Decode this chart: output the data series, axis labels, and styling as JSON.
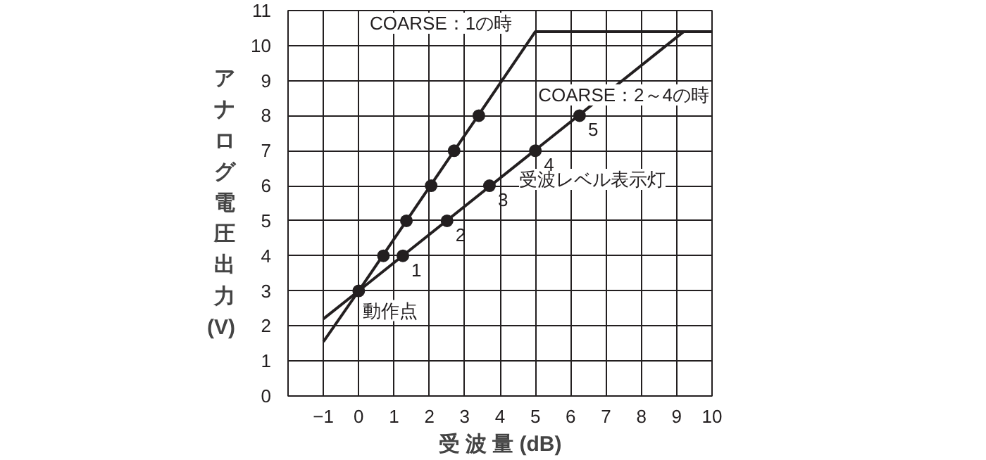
{
  "chart_data": {
    "type": "line",
    "xlabel": "受 波 量 (dB)",
    "ylabel": "アナログ電圧出力 (V)",
    "xlim": [
      -2,
      10
    ],
    "ylim": [
      0,
      11
    ],
    "xticks": [
      -1,
      0,
      1,
      2,
      3,
      4,
      5,
      6,
      7,
      8,
      9,
      10
    ],
    "yticks": [
      0,
      1,
      2,
      3,
      4,
      5,
      6,
      7,
      8,
      9,
      10,
      11
    ],
    "grid": true,
    "series": [
      {
        "color": "#231f20",
        "x": [
          -1,
          0,
          5,
          10
        ],
        "values": [
          1.55,
          3,
          10.4,
          10.4
        ]
      },
      {
        "color": "#231f20",
        "x": [
          -1,
          0,
          9.2,
          10
        ],
        "values": [
          2.2,
          3,
          10.4,
          10.4
        ]
      },
      {
        "type": "scatter",
        "marker": "circle",
        "color": "#231f20",
        "x": [
          0,
          0.7,
          1.35,
          2.05,
          2.7,
          3.4
        ],
        "values": [
          3,
          4,
          5,
          6,
          7,
          8
        ]
      },
      {
        "type": "scatter",
        "marker": "circle",
        "color": "#231f20",
        "x": [
          1.25,
          2.5,
          3.7,
          5,
          6.25
        ],
        "values": [
          4,
          5,
          6,
          7,
          8
        ]
      }
    ],
    "annotations": [
      "COARSE：1の時",
      "COARSE：2～4の時",
      "受波レベル表示灯",
      {
        "text": "動作点",
        "x": 0,
        "y": 3
      },
      {
        "text": "1",
        "x": 1.25,
        "y": 4
      },
      {
        "text": "2",
        "x": 2.5,
        "y": 5
      },
      {
        "text": "3",
        "x": 3.7,
        "y": 6
      },
      {
        "text": "4",
        "x": 5,
        "y": 7
      },
      {
        "text": "5",
        "x": 6.25,
        "y": 8
      }
    ]
  }
}
